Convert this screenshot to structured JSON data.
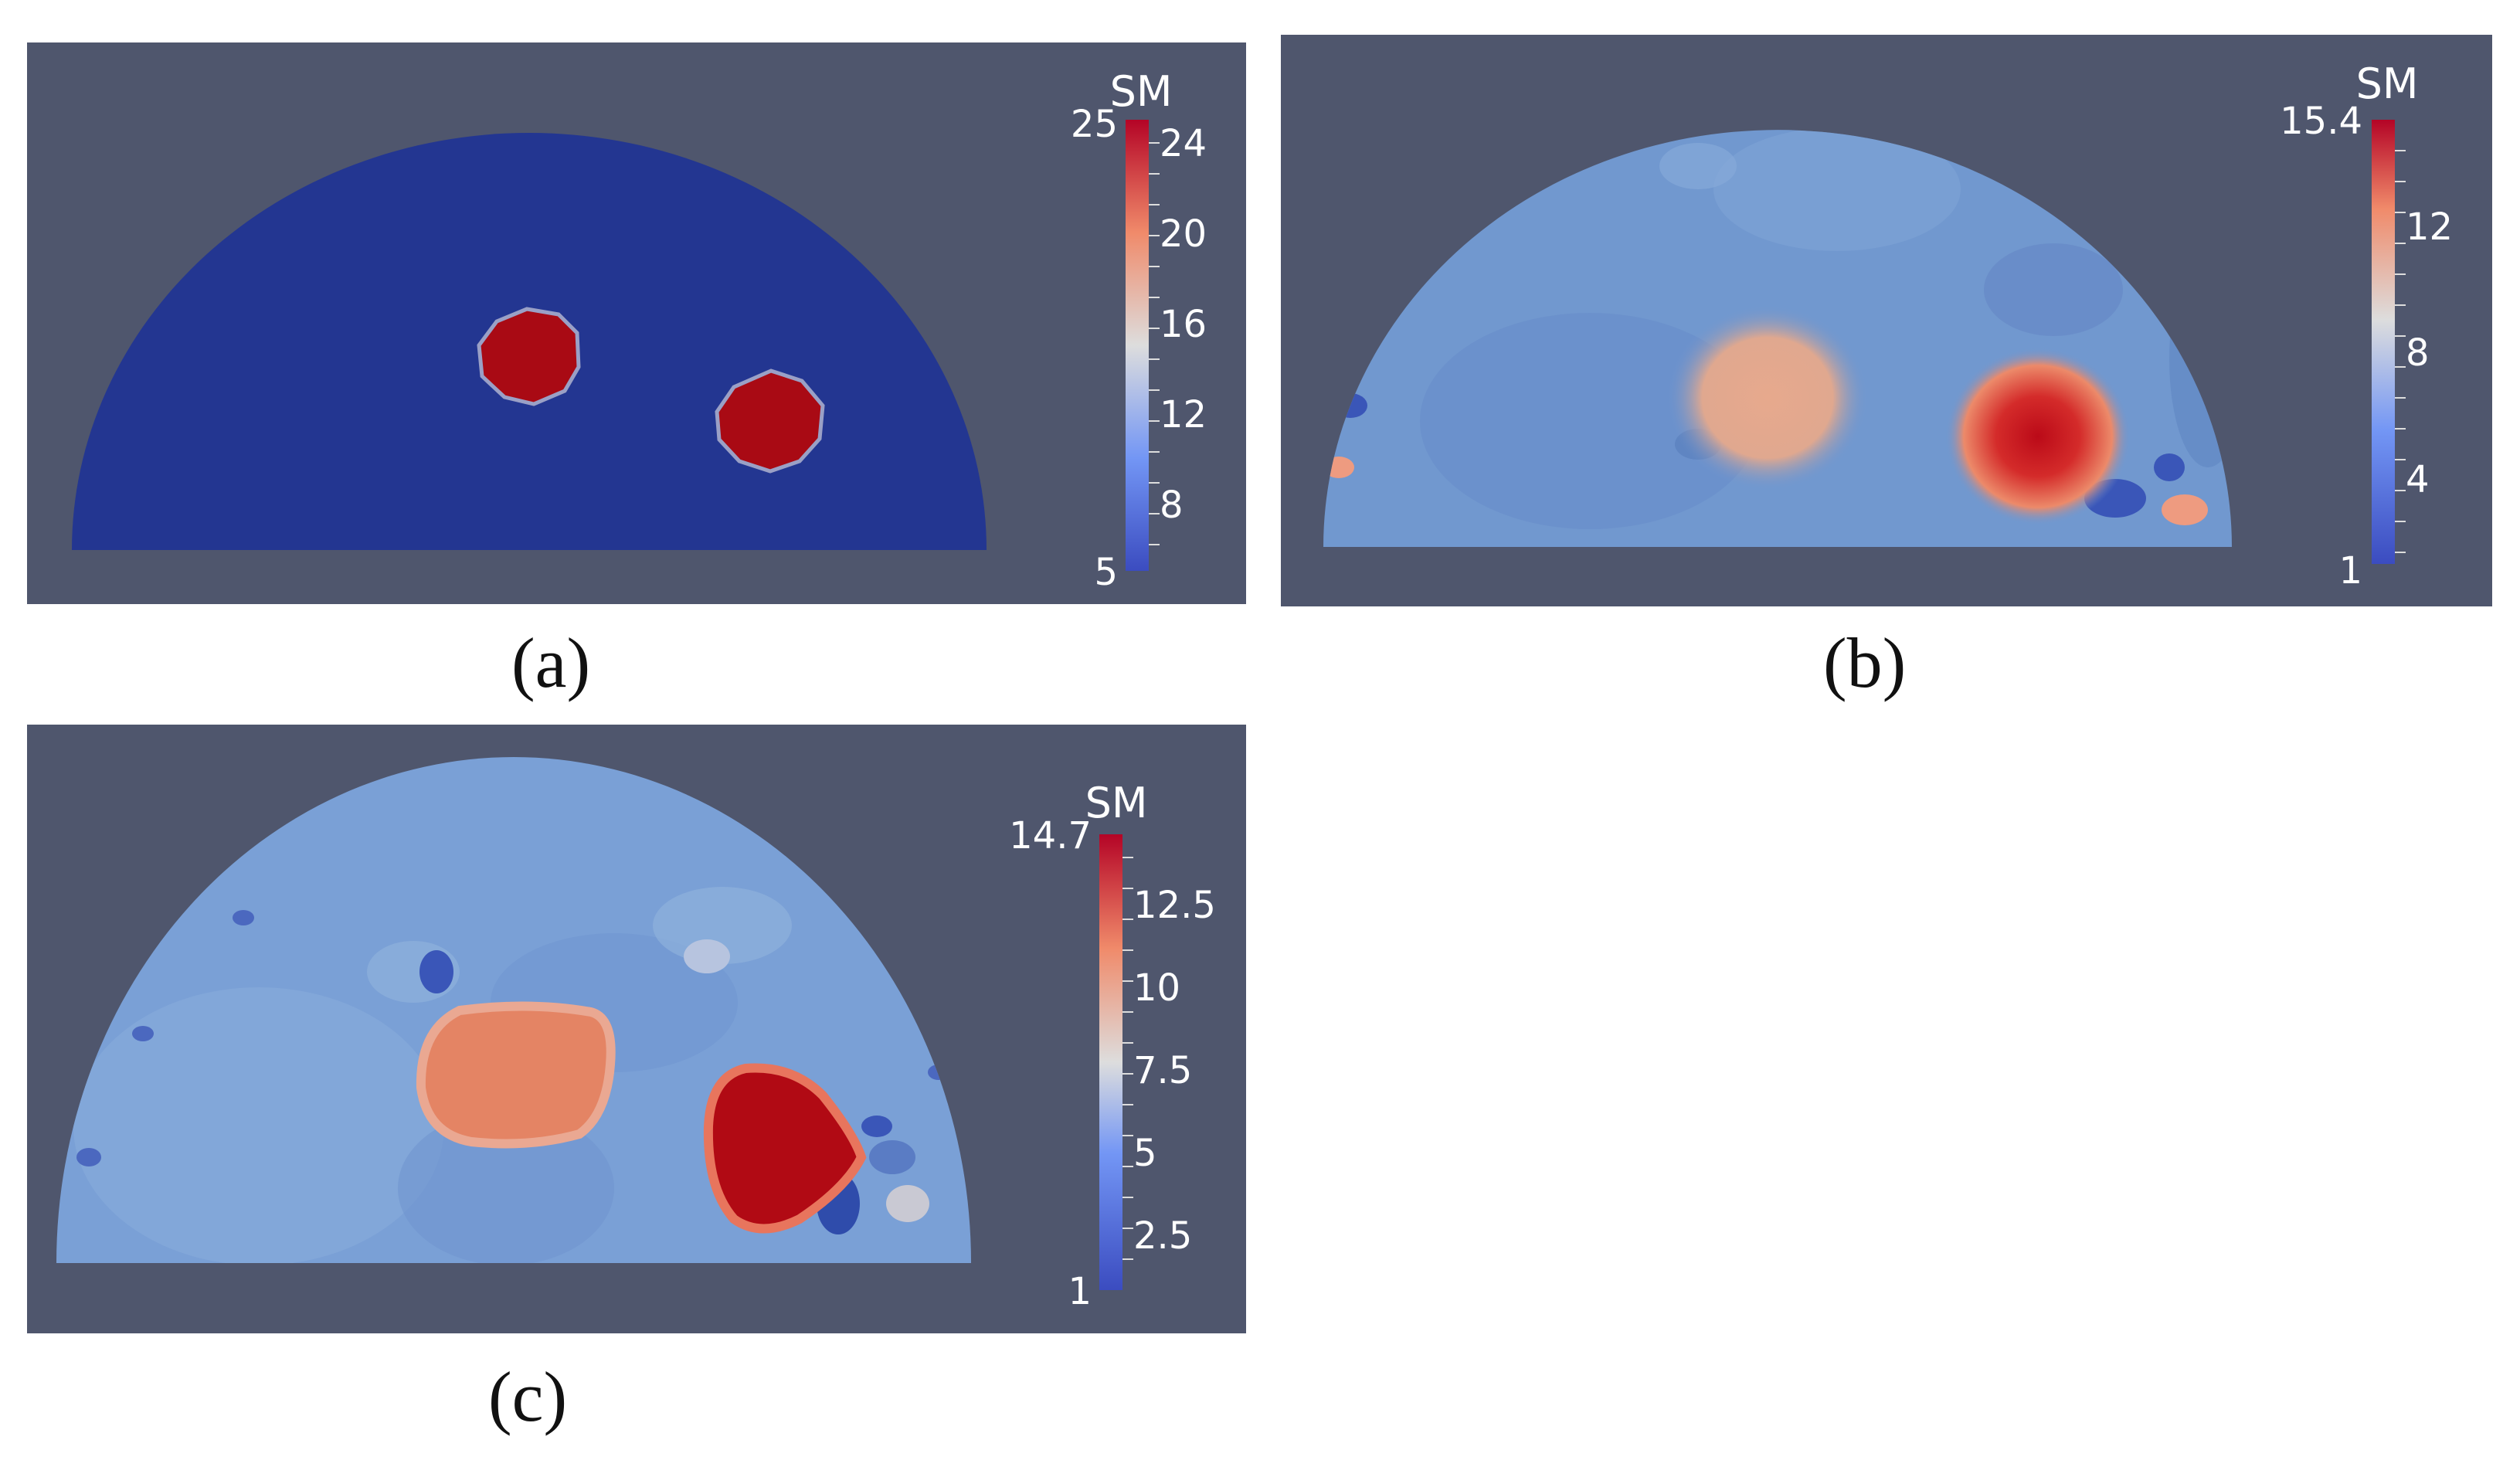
{
  "panels": [
    {
      "caption": "(a)",
      "colorbar": {
        "title": "SM",
        "min_label": "5",
        "max_label": "25",
        "ticks": [
          "24",
          "20",
          "16",
          "12",
          "8"
        ]
      }
    },
    {
      "caption": "(b)",
      "colorbar": {
        "title": "SM",
        "min_label": "1",
        "max_label": "15.4",
        "ticks": [
          "12",
          "8",
          "4"
        ]
      }
    },
    {
      "caption": "(c)",
      "colorbar": {
        "title": "SM",
        "min_label": "1",
        "max_label": "14.7",
        "ticks": [
          "12.5",
          "10",
          "7.5",
          "5",
          "2.5"
        ]
      }
    }
  ],
  "colors": {
    "background": "#4f566d",
    "low": "#2c3a9a",
    "mid": "#dcdcdc",
    "high": "#b40b16"
  }
}
